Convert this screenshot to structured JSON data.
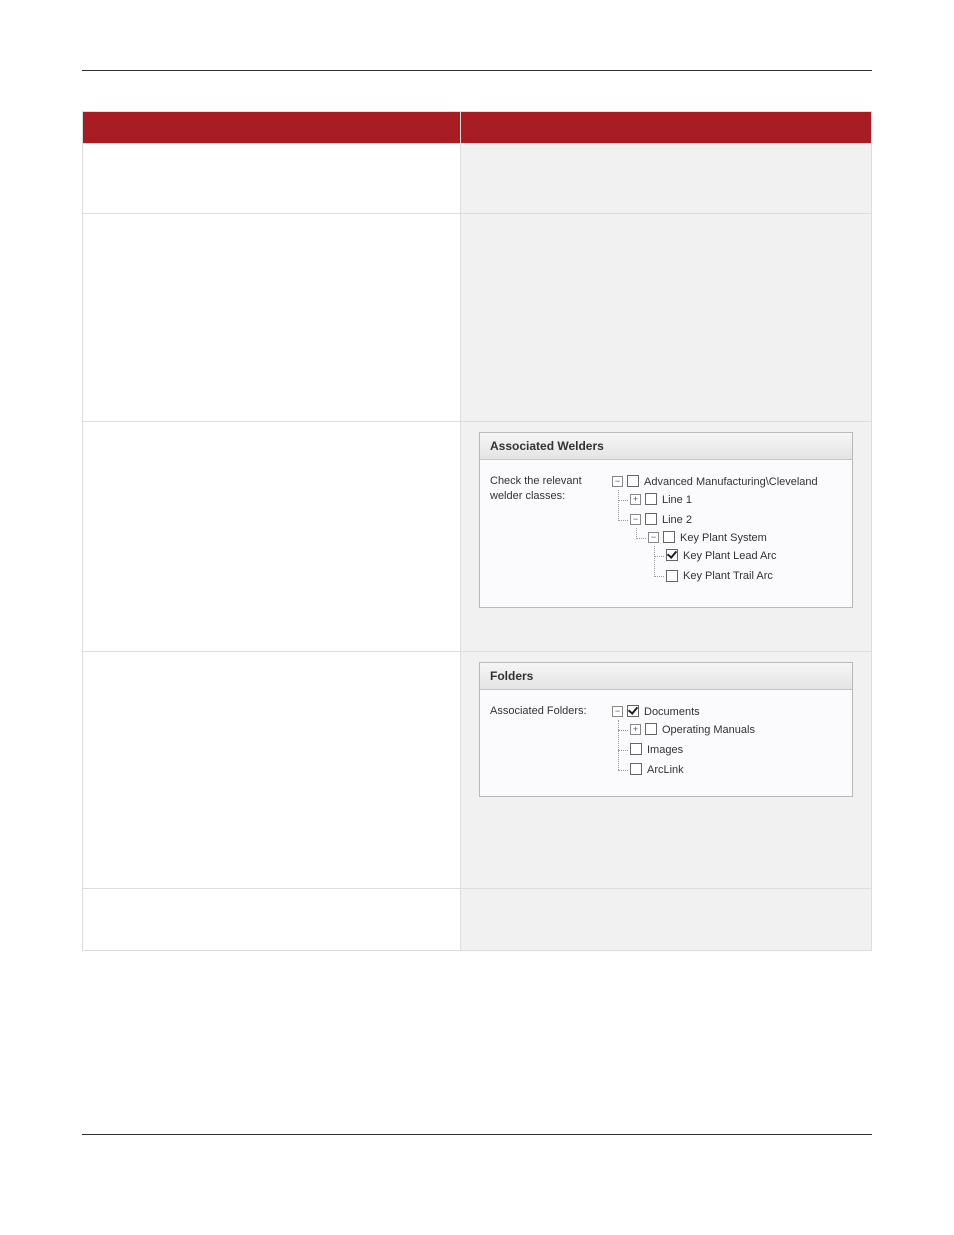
{
  "welders_panel": {
    "title": "Associated Welders",
    "label": "Check the relevant welder classes:",
    "tree": [
      {
        "toggle": "−",
        "checked": false,
        "label": "Advanced Manufacturing\\Cleveland",
        "children": [
          {
            "toggle": "+",
            "checked": false,
            "label": "Line 1"
          },
          {
            "toggle": "−",
            "checked": false,
            "label": "Line 2",
            "children": [
              {
                "toggle": "−",
                "checked": false,
                "label": "Key Plant System",
                "children": [
                  {
                    "checked": true,
                    "label": "Key Plant Lead Arc"
                  },
                  {
                    "checked": false,
                    "label": "Key Plant Trail Arc"
                  }
                ]
              }
            ]
          }
        ]
      }
    ]
  },
  "folders_panel": {
    "title": "Folders",
    "label": "Associated Folders:",
    "tree": [
      {
        "toggle": "−",
        "checked": true,
        "label": "Documents",
        "children": [
          {
            "toggle": "+",
            "checked": false,
            "label": "Operating Manuals"
          },
          {
            "checked": false,
            "label": "Images"
          },
          {
            "checked": false,
            "label": "ArcLink"
          }
        ]
      }
    ]
  }
}
